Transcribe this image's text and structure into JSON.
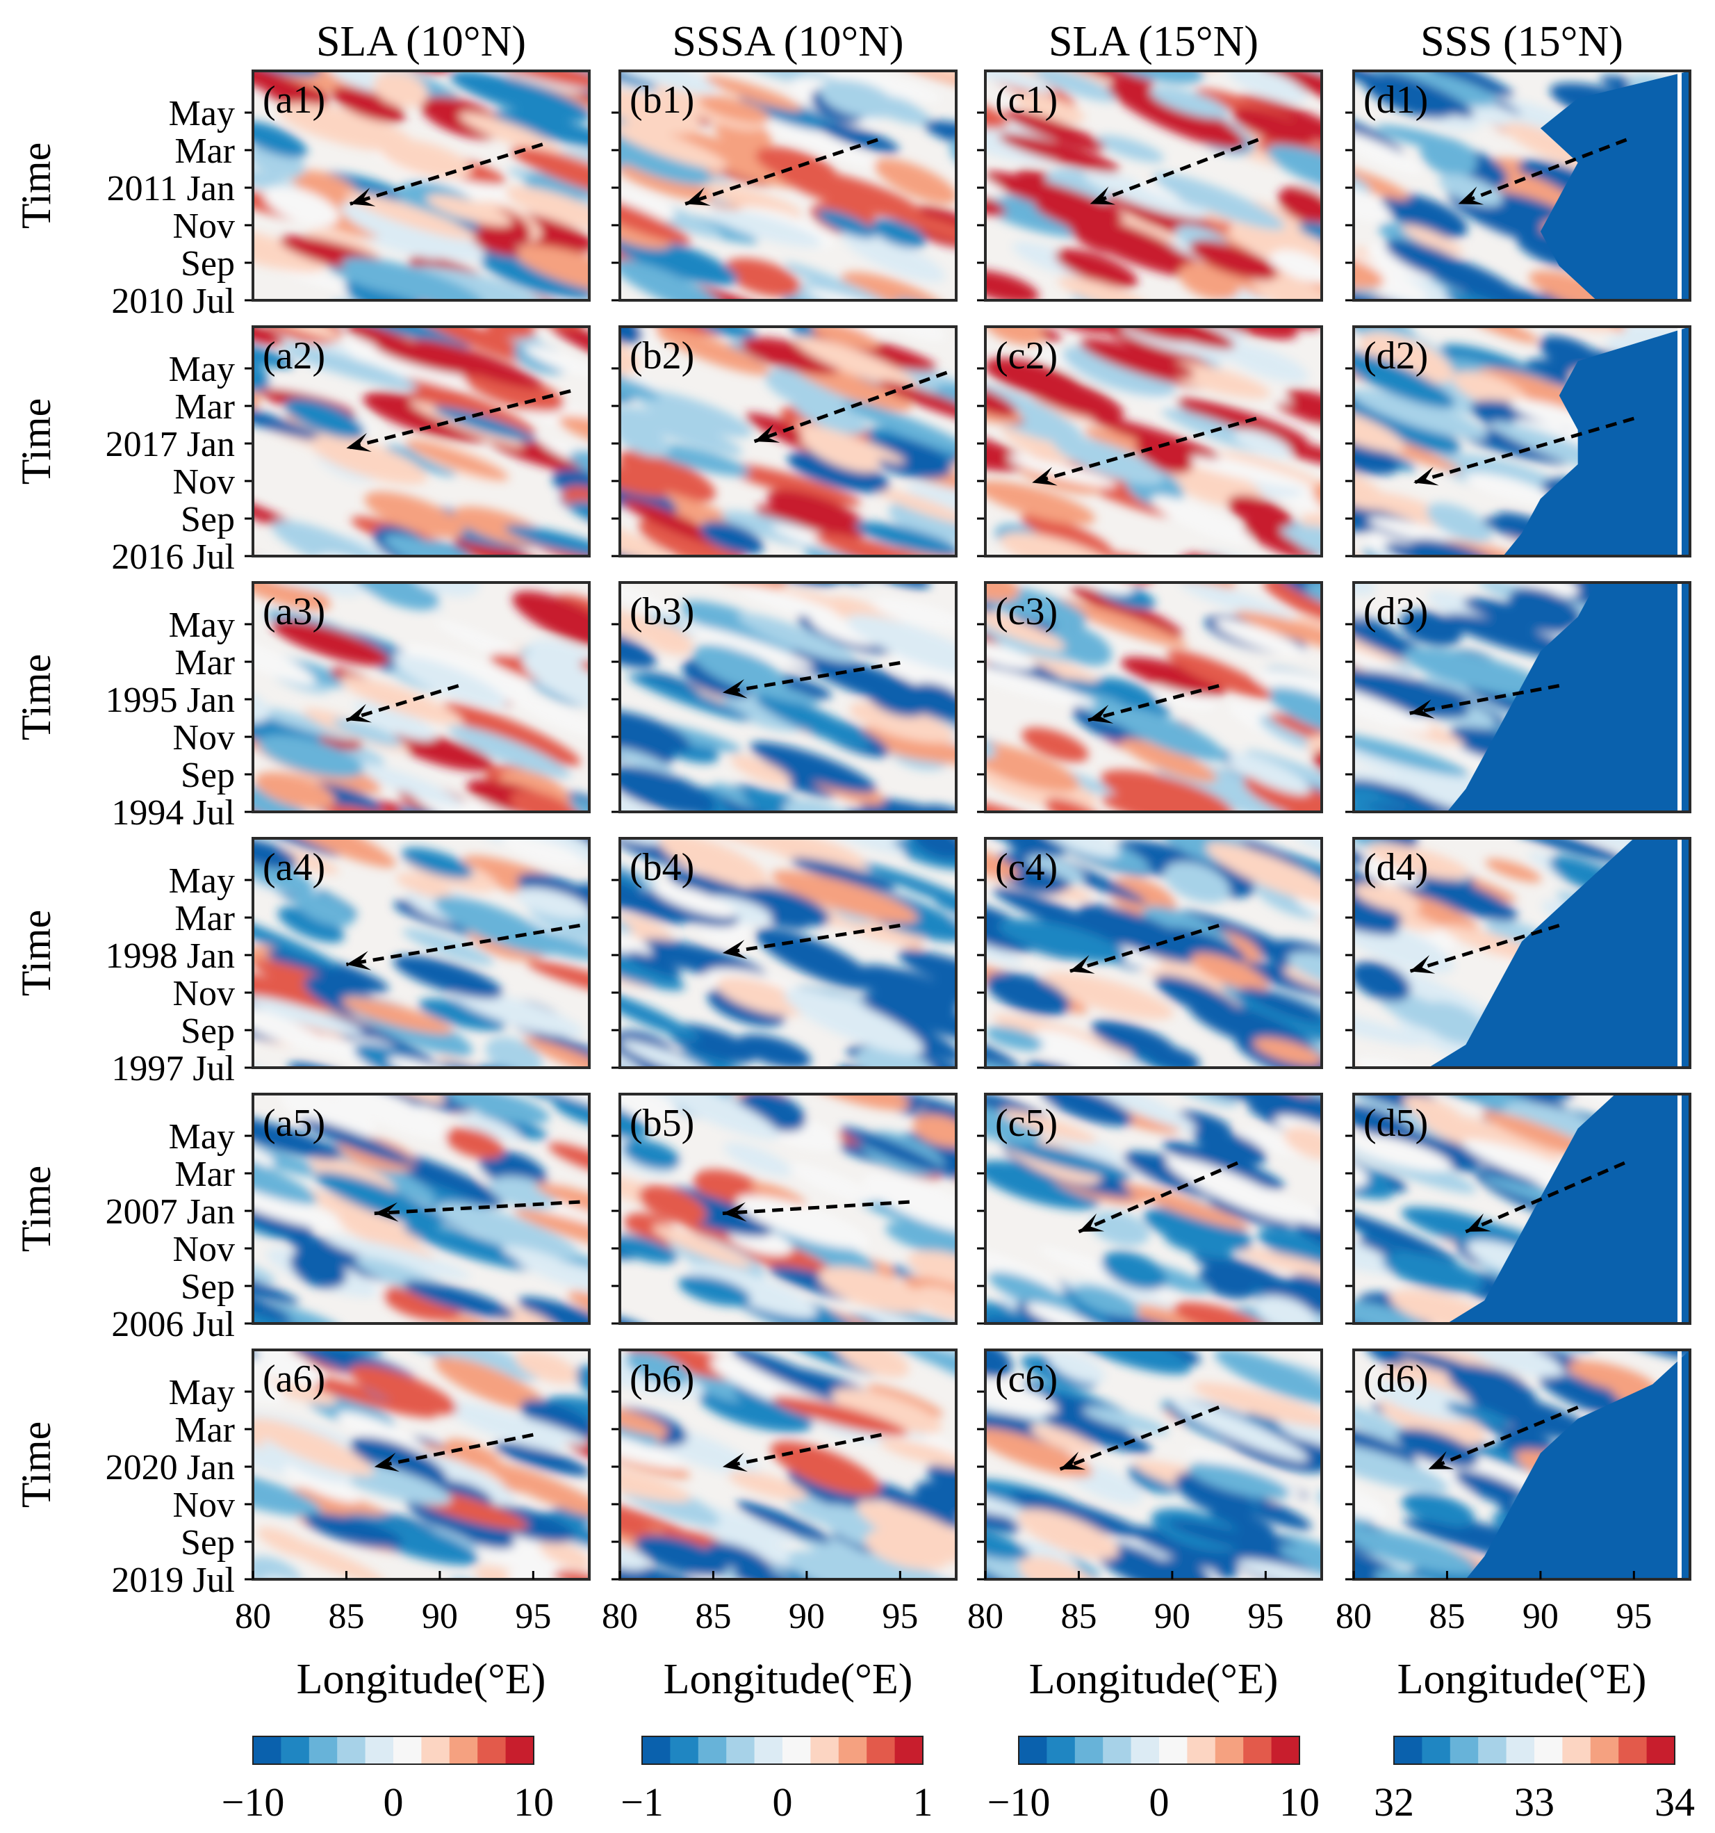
{
  "chart_data": {
    "type": "heatmap",
    "description_kind": "Hovmoller longitude-time diagrams, 6 events x 4 variables",
    "xlabel": "Longitude(°E)",
    "ylabel": "Time",
    "x_ticks": [
      "80",
      "85",
      "90",
      "95"
    ],
    "xlim": [
      80,
      98
    ],
    "columns": [
      {
        "key": "a",
        "title": "SLA (10°N)",
        "cbar_ticks": [
          "−10",
          "0",
          "10"
        ],
        "cbar_range": [
          -10,
          10
        ],
        "cbar_colors": [
          "#0a61ad",
          "#1f86c2",
          "#67b3d9",
          "#a7d2e8",
          "#dcebf4",
          "#f7f7f7",
          "#fcd5c2",
          "#f5a180",
          "#e35a4b",
          "#c81e2d"
        ]
      },
      {
        "key": "b",
        "title": "SSSA (10°N)",
        "cbar_ticks": [
          "−1",
          "0",
          "1"
        ],
        "cbar_range": [
          -1,
          1
        ],
        "cbar_colors": [
          "#0a61ad",
          "#1f86c2",
          "#67b3d9",
          "#a7d2e8",
          "#dcebf4",
          "#f7f7f7",
          "#fcd5c2",
          "#f5a180",
          "#e35a4b",
          "#c81e2d"
        ]
      },
      {
        "key": "c",
        "title": "SLA (15°N)",
        "cbar_ticks": [
          "−10",
          "0",
          "10"
        ],
        "cbar_range": [
          -10,
          10
        ],
        "cbar_colors": [
          "#0a61ad",
          "#1f86c2",
          "#67b3d9",
          "#a7d2e8",
          "#dcebf4",
          "#f7f7f7",
          "#fcd5c2",
          "#f5a180",
          "#e35a4b",
          "#c81e2d"
        ]
      },
      {
        "key": "d",
        "title": "SSS (15°N)",
        "cbar_ticks": [
          "32",
          "33",
          "34"
        ],
        "cbar_range": [
          32,
          34
        ],
        "cbar_colors": [
          "#0a61ad",
          "#1f86c2",
          "#67b3d9",
          "#a7d2e8",
          "#dcebf4",
          "#f7f7f7",
          "#fcd5c2",
          "#f5a180",
          "#e35a4b",
          "#c81e2d"
        ]
      }
    ],
    "rows": [
      {
        "y_ticks": [
          "May",
          "Mar",
          "2011 Jan",
          "Nov",
          "Sep",
          "2010 Jul"
        ],
        "arrows": [
          {
            "from": [
              95.5,
              0.32
            ],
            "to": [
              85.2,
              0.58
            ]
          },
          {
            "from": [
              93.8,
              0.3
            ],
            "to": [
              83.5,
              0.58
            ]
          },
          {
            "from": [
              94.6,
              0.3
            ],
            "to": [
              85.6,
              0.58
            ]
          },
          {
            "from": [
              94.6,
              0.3
            ],
            "to": [
              85.6,
              0.58
            ]
          }
        ],
        "c_mean": [
          0.15,
          0.05,
          0.2,
          -0.2
        ]
      },
      {
        "y_ticks": [
          "May",
          "Mar",
          "2017 Jan",
          "Nov",
          "Sep",
          "2016 Jul"
        ],
        "arrows": [
          {
            "from": [
              97,
              0.28
            ],
            "to": [
              85.0,
              0.53
            ]
          },
          {
            "from": [
              97.5,
              0.2
            ],
            "to": [
              87.2,
              0.5
            ]
          },
          {
            "from": [
              94.5,
              0.4
            ],
            "to": [
              82.5,
              0.68
            ]
          },
          {
            "from": [
              95.0,
              0.4
            ],
            "to": [
              83.2,
              0.68
            ]
          }
        ],
        "c_mean": [
          0.1,
          0.0,
          0.35,
          -0.3
        ]
      },
      {
        "y_ticks": [
          "May",
          "Mar",
          "1995 Jan",
          "Nov",
          "Sep",
          "1994 Jul"
        ],
        "arrows": [
          {
            "from": [
              91.0,
              0.45
            ],
            "to": [
              85.0,
              0.6
            ]
          },
          {
            "from": [
              95.0,
              0.35
            ],
            "to": [
              85.5,
              0.48
            ]
          },
          {
            "from": [
              92.5,
              0.45
            ],
            "to": [
              85.5,
              0.6
            ]
          },
          {
            "from": [
              91.0,
              0.45
            ],
            "to": [
              83.0,
              0.57
            ]
          }
        ],
        "c_mean": [
          0.05,
          -0.25,
          0.0,
          -0.35
        ]
      },
      {
        "y_ticks": [
          "May",
          "Mar",
          "1998 Jan",
          "Nov",
          "Sep",
          "1997 Jul"
        ],
        "arrows": [
          {
            "from": [
              97.5,
              0.38
            ],
            "to": [
              85.0,
              0.55
            ]
          },
          {
            "from": [
              95.0,
              0.38
            ],
            "to": [
              85.5,
              0.5
            ]
          },
          {
            "from": [
              92.5,
              0.38
            ],
            "to": [
              84.5,
              0.58
            ]
          },
          {
            "from": [
              91.0,
              0.38
            ],
            "to": [
              83.0,
              0.58
            ]
          }
        ],
        "c_mean": [
          -0.15,
          -0.3,
          -0.3,
          -0.3
        ]
      },
      {
        "y_ticks": [
          "May",
          "Mar",
          "2007 Jan",
          "Nov",
          "Sep",
          "2006 Jul"
        ],
        "arrows": [
          {
            "from": [
              97.5,
              0.47
            ],
            "to": [
              86.5,
              0.52
            ]
          },
          {
            "from": [
              95.5,
              0.47
            ],
            "to": [
              85.5,
              0.52
            ]
          },
          {
            "from": [
              93.5,
              0.3
            ],
            "to": [
              85.0,
              0.6
            ]
          },
          {
            "from": [
              94.5,
              0.3
            ],
            "to": [
              86.0,
              0.6
            ]
          }
        ],
        "c_mean": [
          -0.2,
          -0.15,
          -0.2,
          -0.3
        ]
      },
      {
        "y_ticks": [
          "May",
          "Mar",
          "2020 Jan",
          "Nov",
          "Sep",
          "2019 Jul"
        ],
        "arrows": [
          {
            "from": [
              95.0,
              0.37
            ],
            "to": [
              86.5,
              0.51
            ]
          },
          {
            "from": [
              94.0,
              0.37
            ],
            "to": [
              85.5,
              0.51
            ]
          },
          {
            "from": [
              92.5,
              0.25
            ],
            "to": [
              84.0,
              0.52
            ]
          },
          {
            "from": [
              92.0,
              0.25
            ],
            "to": [
              84.0,
              0.52
            ]
          }
        ],
        "c_mean": [
          -0.1,
          -0.15,
          -0.3,
          -0.3
        ]
      }
    ],
    "panel_labels": [
      [
        "(a1)",
        "(b1)",
        "(c1)",
        "(d1)"
      ],
      [
        "(a2)",
        "(b2)",
        "(c2)",
        "(d2)"
      ],
      [
        "(a3)",
        "(b3)",
        "(c3)",
        "(d3)"
      ],
      [
        "(a4)",
        "(b4)",
        "(c4)",
        "(d4)"
      ],
      [
        "(a5)",
        "(b5)",
        "(c5)",
        "(d5)"
      ],
      [
        "(a6)",
        "(b6)",
        "(c6)",
        "(d6)"
      ]
    ],
    "sss_coastline_lon": [
      [
        [
          0,
          98
        ],
        [
          0.12,
          92
        ],
        [
          0.25,
          90
        ],
        [
          0.4,
          92
        ],
        [
          0.55,
          91
        ],
        [
          0.7,
          90
        ],
        [
          0.85,
          91
        ],
        [
          1,
          93
        ]
      ],
      [
        [
          0,
          98
        ],
        [
          0.15,
          92
        ],
        [
          0.3,
          91
        ],
        [
          0.45,
          92
        ],
        [
          0.6,
          92
        ],
        [
          0.75,
          90
        ],
        [
          0.9,
          89
        ],
        [
          1,
          88
        ]
      ],
      [
        [
          0,
          93
        ],
        [
          0.15,
          92
        ],
        [
          0.3,
          90
        ],
        [
          0.45,
          89
        ],
        [
          0.6,
          88
        ],
        [
          0.75,
          87
        ],
        [
          0.9,
          86
        ],
        [
          1,
          85
        ]
      ],
      [
        [
          0,
          95
        ],
        [
          0.15,
          93
        ],
        [
          0.3,
          91
        ],
        [
          0.45,
          89
        ],
        [
          0.6,
          88
        ],
        [
          0.75,
          87
        ],
        [
          0.9,
          86
        ],
        [
          1,
          84
        ]
      ],
      [
        [
          0,
          94
        ],
        [
          0.15,
          92
        ],
        [
          0.3,
          91
        ],
        [
          0.45,
          90
        ],
        [
          0.6,
          89
        ],
        [
          0.75,
          88
        ],
        [
          0.9,
          87
        ],
        [
          1,
          85
        ]
      ],
      [
        [
          0,
          98
        ],
        [
          0.15,
          96
        ],
        [
          0.3,
          92
        ],
        [
          0.45,
          90
        ],
        [
          0.6,
          89
        ],
        [
          0.75,
          88
        ],
        [
          0.9,
          87
        ],
        [
          1,
          86
        ]
      ]
    ]
  }
}
